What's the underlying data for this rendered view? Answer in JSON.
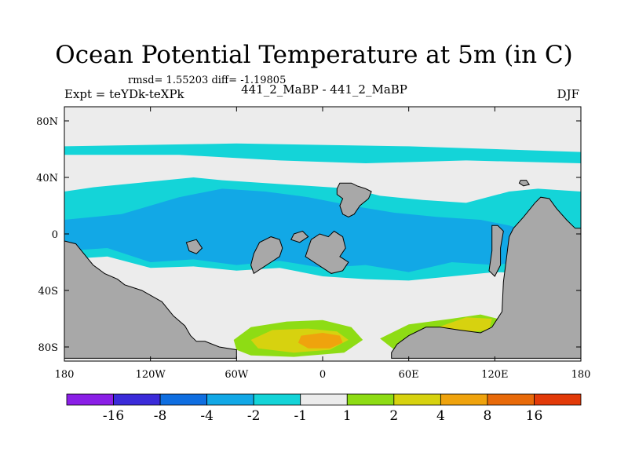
{
  "chart_data": {
    "type": "heatmap",
    "title": "Ocean Potential Temperature at 5m (in C)",
    "stats": "rmsd= 1.55203 diff= -1.19805",
    "left_label": "Expt = teYDk-teXPk",
    "center_label": "441_2_MaBP - 441_2_MaBP",
    "right_label": "DJF",
    "xlim": [
      -180,
      180
    ],
    "ylim": [
      -90,
      90
    ],
    "x_ticks": [
      {
        "value": -180,
        "label": "180"
      },
      {
        "value": -120,
        "label": "120W"
      },
      {
        "value": -60,
        "label": "60W"
      },
      {
        "value": 0,
        "label": "0"
      },
      {
        "value": 60,
        "label": "60E"
      },
      {
        "value": 120,
        "label": "120E"
      },
      {
        "value": 180,
        "label": "180"
      }
    ],
    "y_ticks": [
      {
        "value": 80,
        "label": "80N"
      },
      {
        "value": 40,
        "label": "40N"
      },
      {
        "value": 0,
        "label": "0"
      },
      {
        "value": -40,
        "label": "40S"
      },
      {
        "value": -80,
        "label": "80S"
      }
    ],
    "colorbar": {
      "colors": [
        "#8a1fe6",
        "#3b2bd9",
        "#0f6ee0",
        "#12a8e6",
        "#14d4d8",
        "#ececec",
        "#8edc14",
        "#d7d20f",
        "#efa30d",
        "#e86a0a",
        "#e23a09"
      ],
      "labels": [
        "-16",
        "-8",
        "-4",
        "-2",
        "-1",
        "1",
        "2",
        "4",
        "8",
        "16"
      ]
    },
    "land_color": "#a8a8a8",
    "regions": [
      {
        "name": "north-band",
        "color": "#14d4d8",
        "points": [
          [
            -180,
            62
          ],
          [
            -60,
            64
          ],
          [
            0,
            63
          ],
          [
            60,
            62
          ],
          [
            180,
            58
          ],
          [
            180,
            50
          ],
          [
            100,
            52
          ],
          [
            30,
            50
          ],
          [
            -30,
            52
          ],
          [
            -100,
            56
          ],
          [
            -180,
            56
          ]
        ]
      },
      {
        "name": "midlat-blue",
        "color": "#14d4d8",
        "points": [
          [
            -180,
            30
          ],
          [
            -160,
            33
          ],
          [
            -130,
            36
          ],
          [
            -90,
            40
          ],
          [
            -70,
            38
          ],
          [
            -40,
            36
          ],
          [
            -10,
            34
          ],
          [
            20,
            32
          ],
          [
            40,
            27
          ],
          [
            70,
            24
          ],
          [
            100,
            22
          ],
          [
            130,
            30
          ],
          [
            150,
            32
          ],
          [
            180,
            30
          ],
          [
            180,
            -20
          ],
          [
            150,
            -28
          ],
          [
            120,
            -27
          ],
          [
            90,
            -30
          ],
          [
            60,
            -33
          ],
          [
            30,
            -32
          ],
          [
            0,
            -30
          ],
          [
            -30,
            -24
          ],
          [
            -60,
            -26
          ],
          [
            -90,
            -23
          ],
          [
            -120,
            -24
          ],
          [
            -150,
            -16
          ],
          [
            -180,
            -18
          ]
        ]
      },
      {
        "name": "midlat-blue-core",
        "color": "#12a8e6",
        "points": [
          [
            -180,
            10
          ],
          [
            -140,
            14
          ],
          [
            -100,
            26
          ],
          [
            -70,
            32
          ],
          [
            -40,
            30
          ],
          [
            -10,
            26
          ],
          [
            20,
            20
          ],
          [
            50,
            15
          ],
          [
            80,
            12
          ],
          [
            110,
            10
          ],
          [
            130,
            6
          ],
          [
            150,
            0
          ],
          [
            180,
            -5
          ],
          [
            180,
            -10
          ],
          [
            150,
            -18
          ],
          [
            120,
            -22
          ],
          [
            90,
            -20
          ],
          [
            60,
            -27
          ],
          [
            30,
            -22
          ],
          [
            0,
            -24
          ],
          [
            -30,
            -19
          ],
          [
            -60,
            -22
          ],
          [
            -90,
            -18
          ],
          [
            -120,
            -20
          ],
          [
            -150,
            -10
          ],
          [
            -180,
            -12
          ]
        ]
      },
      {
        "name": "south-green",
        "color": "#8edc14",
        "points": [
          [
            -62,
            -75
          ],
          [
            -50,
            -66
          ],
          [
            -25,
            -62
          ],
          [
            0,
            -61
          ],
          [
            20,
            -66
          ],
          [
            28,
            -75
          ],
          [
            15,
            -84
          ],
          [
            -20,
            -87
          ],
          [
            -50,
            -86
          ],
          [
            -60,
            -82
          ]
        ]
      },
      {
        "name": "south-yellow",
        "color": "#d7d20f",
        "points": [
          [
            -50,
            -75
          ],
          [
            -35,
            -68
          ],
          [
            -10,
            -67
          ],
          [
            10,
            -69
          ],
          [
            18,
            -75
          ],
          [
            5,
            -82
          ],
          [
            -20,
            -84
          ],
          [
            -45,
            -81
          ]
        ]
      },
      {
        "name": "south-orange",
        "color": "#efa30d",
        "points": [
          [
            -15,
            -72
          ],
          [
            0,
            -70
          ],
          [
            12,
            -72
          ],
          [
            14,
            -77
          ],
          [
            5,
            -81
          ],
          [
            -10,
            -81
          ],
          [
            -17,
            -77
          ]
        ]
      },
      {
        "name": "south-green-east",
        "color": "#8edc14",
        "points": [
          [
            40,
            -74
          ],
          [
            60,
            -64
          ],
          [
            90,
            -60
          ],
          [
            110,
            -57
          ],
          [
            122,
            -60
          ],
          [
            120,
            -69
          ],
          [
            100,
            -75
          ],
          [
            70,
            -80
          ],
          [
            50,
            -82
          ]
        ]
      },
      {
        "name": "south-yellow-east",
        "color": "#d7d20f",
        "points": [
          [
            75,
            -68
          ],
          [
            100,
            -59
          ],
          [
            118,
            -60
          ],
          [
            116,
            -68
          ],
          [
            95,
            -70
          ],
          [
            80,
            -71
          ]
        ]
      }
    ],
    "land": [
      {
        "name": "south-america-antarctica",
        "points": [
          [
            -180,
            -5
          ],
          [
            -172,
            -7
          ],
          [
            -168,
            -12
          ],
          [
            -160,
            -22
          ],
          [
            -152,
            -28
          ],
          [
            -143,
            -32
          ],
          [
            -138,
            -36
          ],
          [
            -126,
            -40
          ],
          [
            -112,
            -48
          ],
          [
            -104,
            -58
          ],
          [
            -96,
            -65
          ],
          [
            -92,
            -72
          ],
          [
            -88,
            -76
          ],
          [
            -82,
            -76
          ],
          [
            -72,
            -80
          ],
          [
            -60,
            -82
          ],
          [
            -60,
            -88
          ],
          [
            -180,
            -88
          ]
        ]
      },
      {
        "name": "africa-antarctica-australia",
        "points": [
          [
            48,
            -84
          ],
          [
            52,
            -78
          ],
          [
            60,
            -72
          ],
          [
            72,
            -66
          ],
          [
            82,
            -66
          ],
          [
            95,
            -68
          ],
          [
            110,
            -70
          ],
          [
            118,
            -66
          ],
          [
            125,
            -55
          ],
          [
            126,
            -34
          ],
          [
            128,
            -18
          ],
          [
            130,
            -2
          ],
          [
            133,
            4
          ],
          [
            140,
            12
          ],
          [
            148,
            22
          ],
          [
            152,
            26
          ],
          [
            158,
            25
          ],
          [
            163,
            18
          ],
          [
            170,
            10
          ],
          [
            176,
            4
          ],
          [
            180,
            4
          ],
          [
            180,
            -88
          ],
          [
            48,
            -88
          ]
        ]
      },
      {
        "name": "atlantic-island",
        "points": [
          [
            10,
            32
          ],
          [
            12,
            36
          ],
          [
            20,
            36
          ],
          [
            24,
            34
          ],
          [
            30,
            32
          ],
          [
            34,
            30
          ],
          [
            32,
            25
          ],
          [
            26,
            20
          ],
          [
            22,
            14
          ],
          [
            18,
            12
          ],
          [
            14,
            14
          ],
          [
            12,
            20
          ],
          [
            14,
            25
          ],
          [
            10,
            28
          ]
        ]
      },
      {
        "name": "gulf-island",
        "points": [
          [
            -50,
            -22
          ],
          [
            -48,
            -14
          ],
          [
            -44,
            -6
          ],
          [
            -36,
            -2
          ],
          [
            -30,
            -4
          ],
          [
            -28,
            -10
          ],
          [
            -30,
            -16
          ],
          [
            -36,
            -20
          ],
          [
            -42,
            -24
          ],
          [
            -48,
            -28
          ]
        ]
      },
      {
        "name": "central-island-1",
        "points": [
          [
            -8,
            -4
          ],
          [
            -2,
            0
          ],
          [
            4,
            -2
          ],
          [
            8,
            2
          ],
          [
            14,
            -2
          ],
          [
            16,
            -10
          ],
          [
            12,
            -16
          ],
          [
            18,
            -20
          ],
          [
            14,
            -26
          ],
          [
            6,
            -28
          ],
          [
            0,
            -24
          ],
          [
            -6,
            -20
          ],
          [
            -12,
            -16
          ],
          [
            -10,
            -10
          ]
        ]
      },
      {
        "name": "central-island-2",
        "points": [
          [
            -95,
            -6
          ],
          [
            -88,
            -4
          ],
          [
            -84,
            -10
          ],
          [
            -88,
            -14
          ],
          [
            -93,
            -12
          ]
        ]
      },
      {
        "name": "central-island-3",
        "points": [
          [
            -20,
            0
          ],
          [
            -14,
            2
          ],
          [
            -10,
            -2
          ],
          [
            -16,
            -6
          ],
          [
            -22,
            -4
          ]
        ]
      },
      {
        "name": "east-peninsula",
        "points": [
          [
            118,
            6
          ],
          [
            122,
            6
          ],
          [
            126,
            2
          ],
          [
            124,
            -10
          ],
          [
            124,
            -22
          ],
          [
            120,
            -30
          ],
          [
            116,
            -26
          ],
          [
            118,
            -12
          ]
        ]
      },
      {
        "name": "far-east-islet",
        "points": [
          [
            138,
            38
          ],
          [
            142,
            38
          ],
          [
            144,
            35
          ],
          [
            140,
            34
          ],
          [
            137,
            36
          ]
        ]
      }
    ]
  }
}
